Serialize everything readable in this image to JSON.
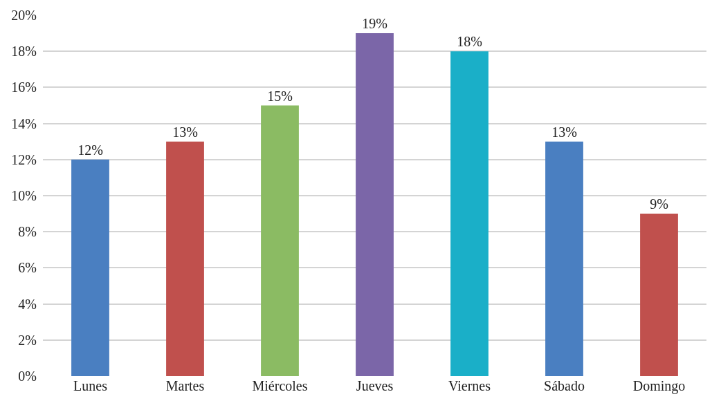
{
  "chart_data": {
    "type": "bar",
    "categories": [
      "Lunes",
      "Martes",
      "Miércoles",
      "Jueves",
      "Viernes",
      "Sábado",
      "Domingo"
    ],
    "values": [
      12,
      13,
      15,
      19,
      18,
      13,
      9
    ],
    "colors": [
      "#4a7fc1",
      "#c0504d",
      "#8bbb63",
      "#7b66a8",
      "#1aafc8",
      "#4a7fc1",
      "#c0504d"
    ],
    "value_labels": [
      "12%",
      "13%",
      "15%",
      "19%",
      "18%",
      "13%",
      "9%"
    ],
    "ylim": [
      0,
      20
    ],
    "yticks": [
      {
        "value": 0,
        "label": "0%"
      },
      {
        "value": 2,
        "label": "2%"
      },
      {
        "value": 4,
        "label": "4%"
      },
      {
        "value": 6,
        "label": "6%"
      },
      {
        "value": 8,
        "label": "8%"
      },
      {
        "value": 10,
        "label": "10%"
      },
      {
        "value": 12,
        "label": "12%"
      },
      {
        "value": 14,
        "label": "14%"
      },
      {
        "value": 16,
        "label": "16%"
      },
      {
        "value": 18,
        "label": "18%"
      },
      {
        "value": 20,
        "label": "20%"
      }
    ],
    "grid": "y",
    "legend": false
  }
}
